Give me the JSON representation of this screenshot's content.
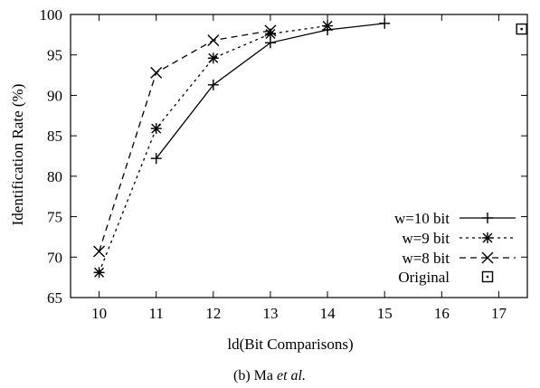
{
  "caption": {
    "prefix": "(b) Ma ",
    "italic": "et al."
  },
  "chart_data": {
    "type": "line",
    "xlabel": "ld(Bit Comparisons)",
    "ylabel": "Identification Rate (%)",
    "xlim": [
      9.5,
      17.5
    ],
    "ylim": [
      65,
      100
    ],
    "xticks": [
      10,
      11,
      12,
      13,
      14,
      15,
      16,
      17
    ],
    "yticks": [
      65,
      70,
      75,
      80,
      85,
      90,
      95,
      100
    ],
    "grid": false,
    "legend_position": "bottom-right",
    "series": [
      {
        "name": "w=10 bit",
        "line_style": "solid",
        "marker": "plus",
        "points": [
          [
            11,
            82.2
          ],
          [
            12,
            91.3
          ],
          [
            13,
            96.5
          ],
          [
            14,
            98.1
          ],
          [
            15,
            98.9
          ]
        ]
      },
      {
        "name": "w=9 bit",
        "line_style": "dotted",
        "marker": "asterisk",
        "points": [
          [
            10,
            68.1
          ],
          [
            11,
            85.9
          ],
          [
            12,
            94.6
          ],
          [
            13,
            97.6
          ],
          [
            14,
            98.6
          ]
        ]
      },
      {
        "name": "w=8 bit",
        "line_style": "dashed",
        "marker": "cross",
        "points": [
          [
            10,
            70.7
          ],
          [
            11,
            92.8
          ],
          [
            12,
            96.8
          ],
          [
            13,
            98.0
          ]
        ]
      },
      {
        "name": "Original",
        "line_style": "none",
        "marker": "boxed-dot",
        "points": [
          [
            17.4,
            98.2
          ]
        ]
      }
    ]
  }
}
